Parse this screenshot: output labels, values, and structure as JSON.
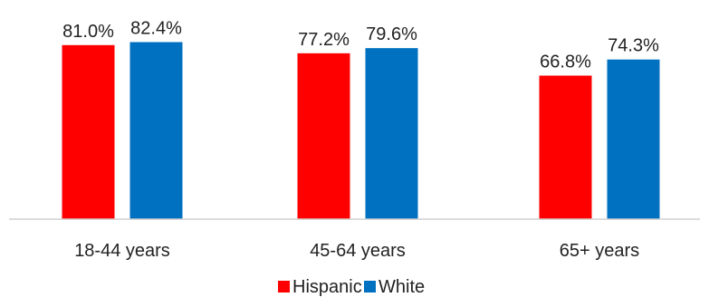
{
  "chart_data": {
    "type": "bar",
    "title": "",
    "xlabel": "",
    "ylabel": "",
    "categories": [
      "18-44 years",
      "45-64 years",
      "65+ years"
    ],
    "series": [
      {
        "name": "Hispanic",
        "color": "#ff0000",
        "values": [
          81.0,
          77.2,
          66.8
        ],
        "labels": [
          "81.0%",
          "77.2%",
          "66.8%"
        ]
      },
      {
        "name": "White",
        "color": "#0070c0",
        "values": [
          82.4,
          79.6,
          74.3
        ],
        "labels": [
          "82.4%",
          "79.6%",
          "74.3%"
        ]
      }
    ],
    "ylim": [
      0,
      100
    ],
    "grid": false,
    "legend": "bottom-center"
  }
}
